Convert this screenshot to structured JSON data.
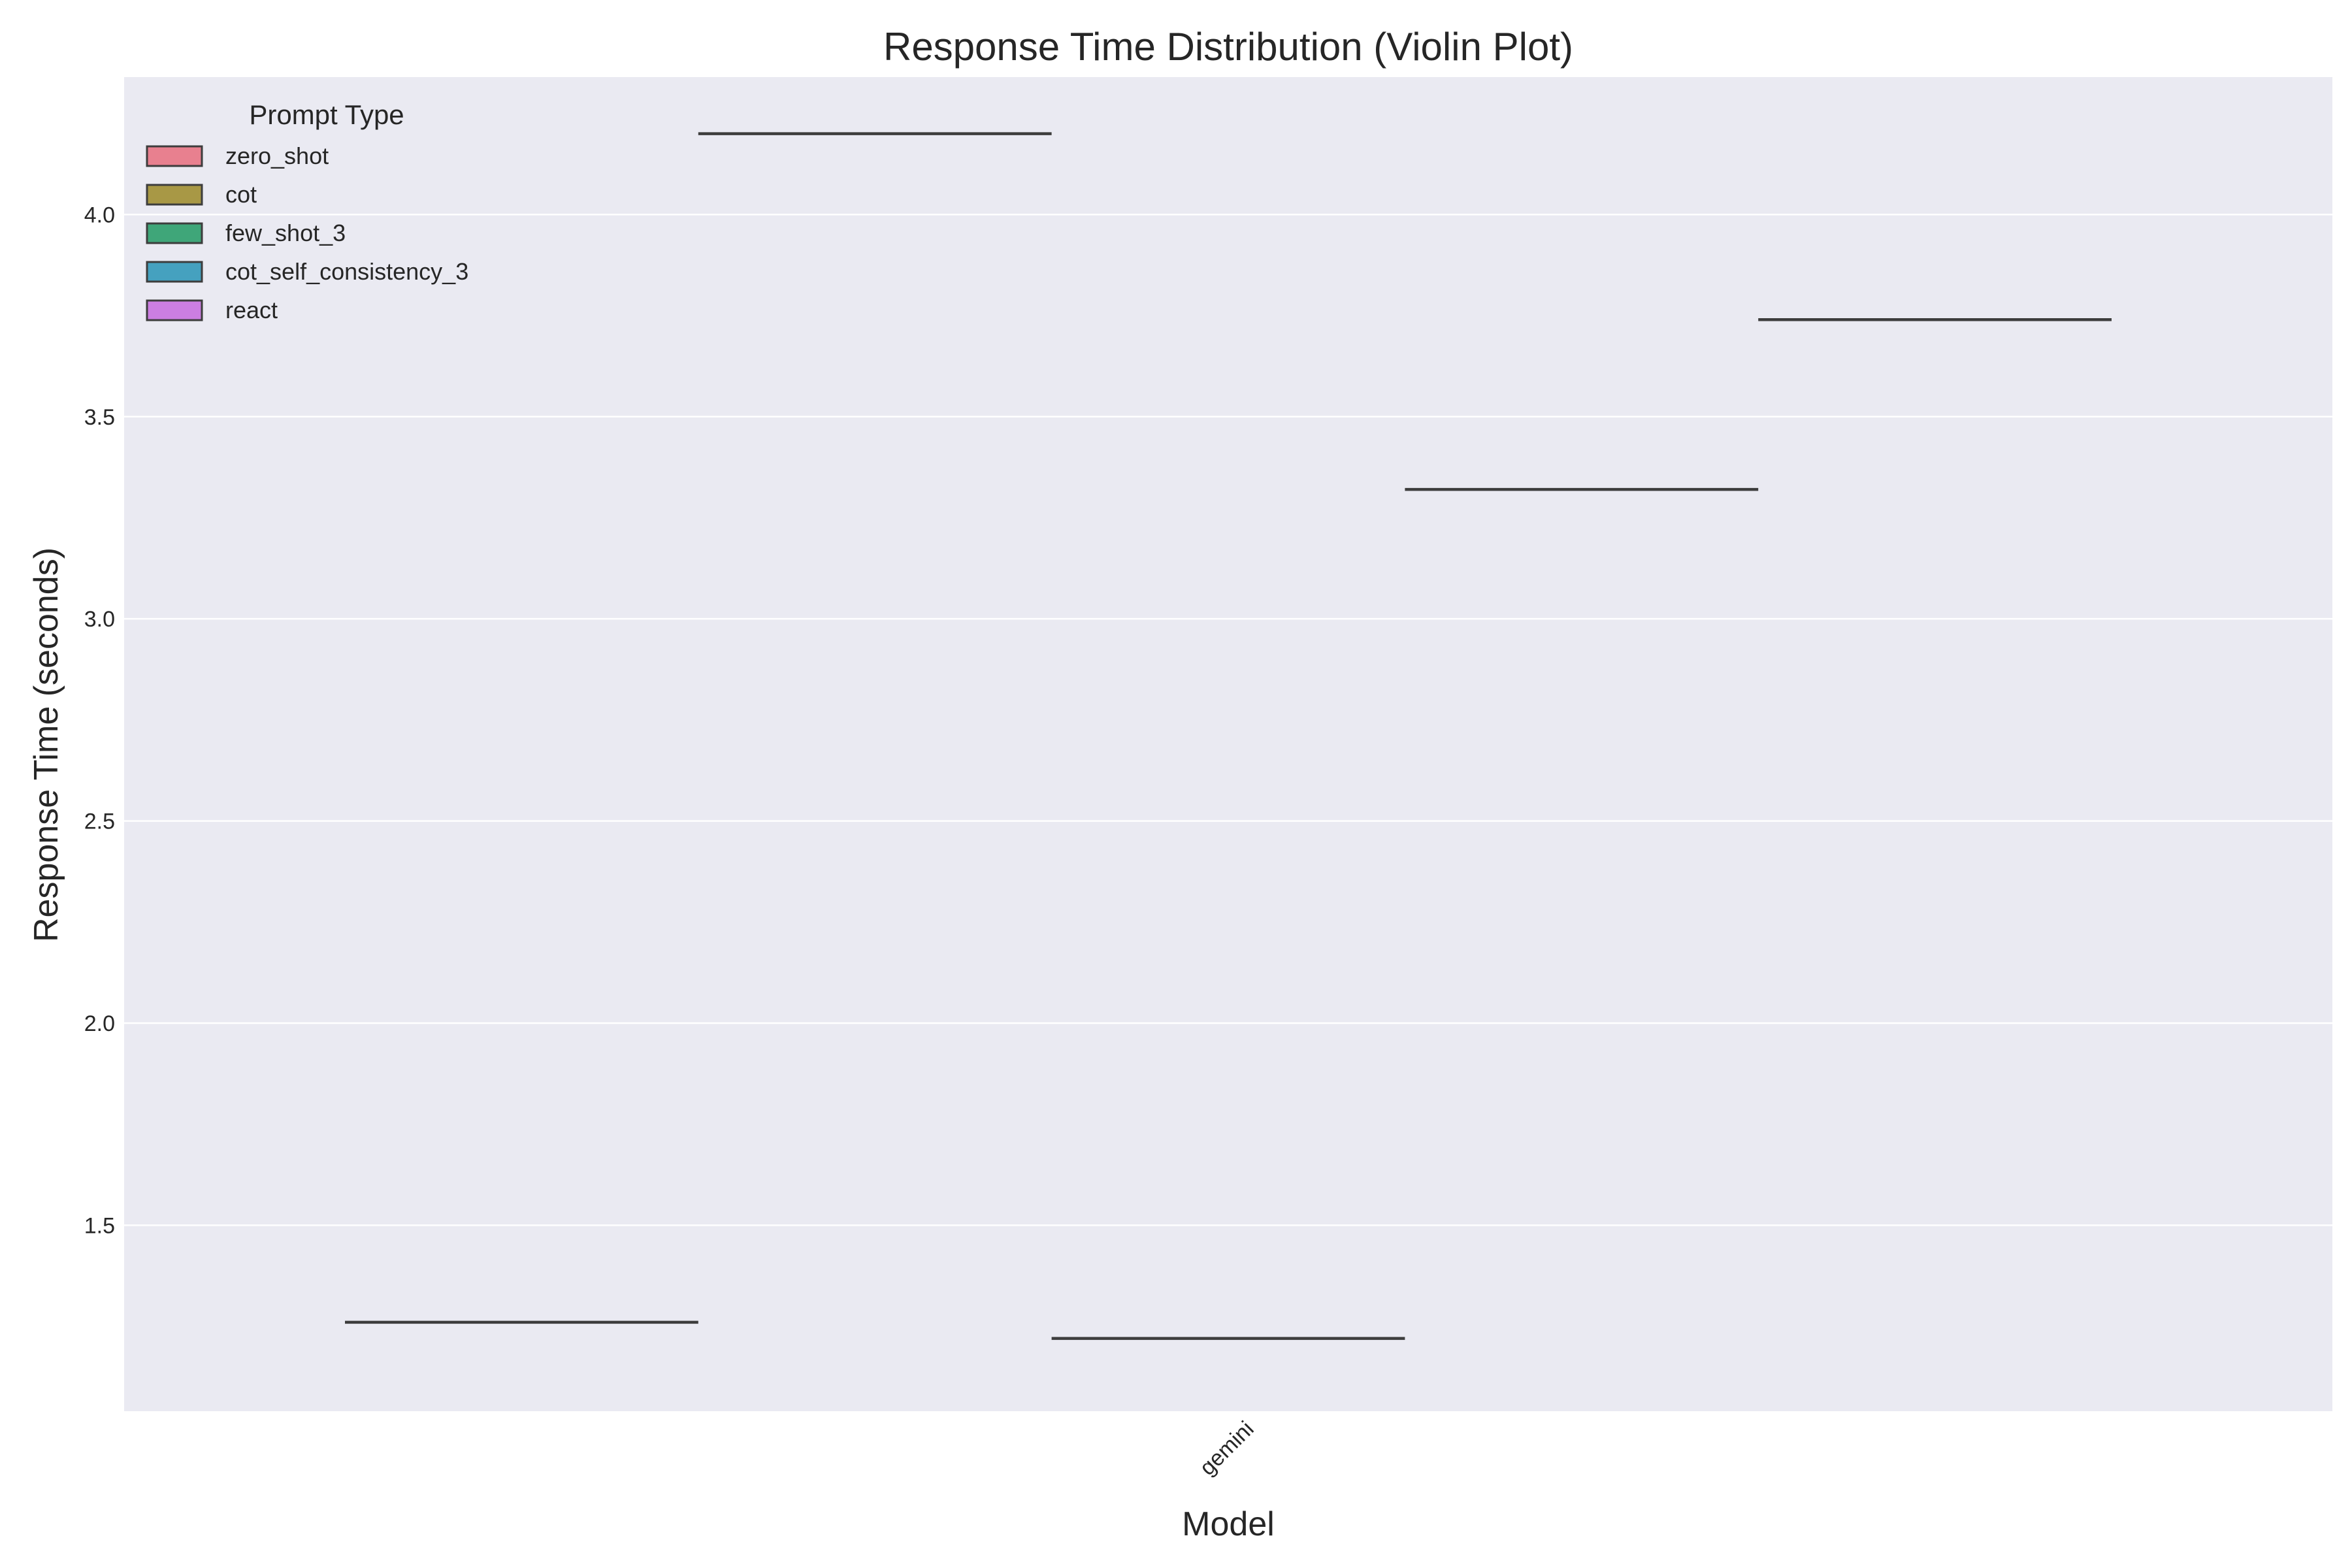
{
  "chart_data": {
    "type": "violin",
    "title": "Response Time Distribution (Violin Plot)",
    "xlabel": "Model",
    "ylabel": "Response Time (seconds)",
    "categories": [
      "gemini"
    ],
    "ylim": [
      1.04,
      4.34
    ],
    "yticks": [
      1.5,
      2.0,
      2.5,
      3.0,
      3.5,
      4.0
    ],
    "ytick_labels": [
      "1.5",
      "2.0",
      "2.5",
      "3.0",
      "3.5",
      "4.0"
    ],
    "grid": true,
    "legend": {
      "title": "Prompt Type",
      "placement": "top-left"
    },
    "series": [
      {
        "name": "zero_shot",
        "color": "#e8808f",
        "values": [
          1.26
        ]
      },
      {
        "name": "cot",
        "color": "#a89845",
        "values": [
          4.2
        ]
      },
      {
        "name": "few_shot_3",
        "color": "#3fa679",
        "values": [
          1.22
        ]
      },
      {
        "name": "cot_self_consistency_3",
        "color": "#45a1bf",
        "values": [
          3.32
        ]
      },
      {
        "name": "react",
        "color": "#cc7ee2",
        "values": [
          3.74
        ]
      }
    ]
  }
}
